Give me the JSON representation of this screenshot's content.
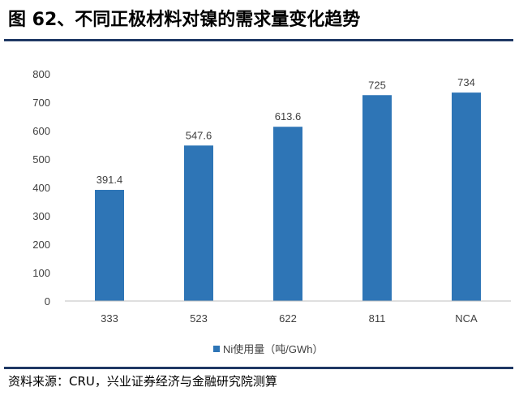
{
  "header": {
    "title": "图 62、不同正极材料对镍的需求量变化趋势"
  },
  "footer": {
    "source": "资料来源：CRU，兴业证券经济与金融研究院测算"
  },
  "chart_data": {
    "type": "bar",
    "categories": [
      "333",
      "523",
      "622",
      "811",
      "NCA"
    ],
    "series": [
      {
        "name": "Ni使用量（吨/GWh）",
        "values": [
          391.4,
          547.6,
          613.6,
          725,
          734
        ],
        "color": "#2e75b6"
      }
    ],
    "data_labels": [
      "391.4",
      "547.6",
      "613.6",
      "725",
      "734"
    ],
    "y_ticks": [
      0,
      100,
      200,
      300,
      400,
      500,
      600,
      700,
      800
    ],
    "ylim": [
      0,
      800
    ],
    "grid": false,
    "legend_position": "bottom-center"
  }
}
